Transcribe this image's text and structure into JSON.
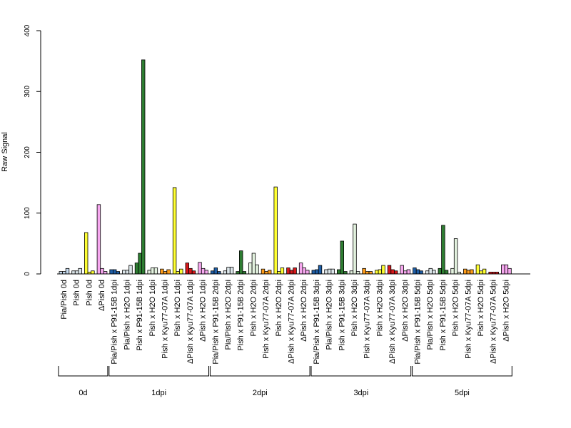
{
  "chart_data": {
    "type": "bar",
    "ylabel": "Raw Signal",
    "ylim": [
      0,
      400
    ],
    "yticks": [
      0,
      100,
      200,
      300,
      400
    ],
    "series_colors": [
      "#c6d7ef",
      "#dce4e7",
      "#edf2f4",
      "#ffffff",
      "#c6d7ef",
      "#dce4e7",
      "#edf2f4",
      "#ffffff",
      "#ffffff",
      "#ffffff",
      "#ffffff",
      "#ffffff",
      "#ffffff",
      "#ffffff",
      "#ffffff"
    ],
    "categories": [
      {
        "label": "Pia/Pish 0d",
        "color": "#c6dbef",
        "values": [
          4,
          4,
          9
        ]
      },
      {
        "label": "Pish 0d",
        "color": "#dce6ea",
        "values": [
          5,
          5,
          9
        ]
      },
      {
        "label": "Pish 0d",
        "color": "#ffff33",
        "values": [
          68,
          3,
          5
        ]
      },
      {
        "label": "ΔPish 0d",
        "color": "#f7a8f0",
        "values": [
          114,
          9,
          4
        ]
      },
      {
        "label": "Pia/Pish x P91-15B 1dpi",
        "color": "#1f5fa8",
        "values": [
          7,
          7,
          4
        ]
      },
      {
        "label": "Pia/Pish x H2O 1dpi",
        "color": "#dce6ea",
        "values": [
          6,
          6,
          14
        ]
      },
      {
        "label": "Pish x P91-15B 1dpi",
        "color": "#2e7d32",
        "values": [
          18,
          34,
          352
        ]
      },
      {
        "label": "Pish x H2O 1dpi",
        "color": "#e3f2df",
        "values": [
          6,
          10,
          10
        ]
      },
      {
        "label": "Pish x Kyu77-07A 1dpi",
        "color": "#ff9d1a",
        "values": [
          8,
          4,
          7
        ]
      },
      {
        "label": "Pish x H2O 1dpi",
        "color": "#ffff33",
        "values": [
          142,
          4,
          8
        ]
      },
      {
        "label": "ΔPish x Kyu77-07A 1dpi",
        "color": "#d7191c",
        "values": [
          18,
          9,
          5
        ]
      },
      {
        "label": "ΔPish x H2O 1dpi",
        "color": "#f7a8f0",
        "values": [
          19,
          9,
          6
        ]
      },
      {
        "label": "Pia/Pish x P91-15B 2dpi",
        "color": "#1f5fa8",
        "values": [
          5,
          10,
          4
        ]
      },
      {
        "label": "Pia/Pish x H2O 2dpi",
        "color": "#dce6ea",
        "values": [
          5,
          11,
          11
        ]
      },
      {
        "label": "Pish x P91-15B 2dpi",
        "color": "#2e7d32",
        "values": [
          4,
          38,
          4
        ]
      },
      {
        "label": "Pish x H2O 2dpi",
        "color": "#e3f2df",
        "values": [
          18,
          34,
          15
        ]
      },
      {
        "label": "Pish x Kyu77-07A 2dpi",
        "color": "#ff9d1a",
        "values": [
          8,
          4,
          6
        ]
      },
      {
        "label": "Pish x H2O 2dpi",
        "color": "#ffff33",
        "values": [
          143,
          4,
          10
        ]
      },
      {
        "label": "ΔPish x Kyu77-07A 2dpi",
        "color": "#d7191c",
        "values": [
          10,
          6,
          10
        ]
      },
      {
        "label": "ΔPish x H2O 2dpi",
        "color": "#f7a8f0",
        "values": [
          18,
          10,
          6
        ]
      },
      {
        "label": "Pia/Pish x P91-15B 3dpi",
        "color": "#1f5fa8",
        "values": [
          6,
          7,
          14
        ]
      },
      {
        "label": "Pia/Pish x H2O 3dpi",
        "color": "#dce6ea",
        "values": [
          7,
          8,
          8
        ]
      },
      {
        "label": "Pish x P91-15B 3dpi",
        "color": "#2e7d32",
        "values": [
          7,
          54,
          4
        ]
      },
      {
        "label": "Pish x H2O 3dpi",
        "color": "#e3f2df",
        "values": [
          5,
          82,
          4
        ]
      },
      {
        "label": "Pish x Kyu77-07A 3dpi",
        "color": "#ff9d1a",
        "values": [
          9,
          4,
          4
        ]
      },
      {
        "label": "Pish x H2O 3dpi",
        "color": "#ffff33",
        "values": [
          6,
          7,
          14
        ]
      },
      {
        "label": "ΔPish x Kyu77-07A 3dpi",
        "color": "#d7191c",
        "values": [
          14,
          7,
          5
        ]
      },
      {
        "label": "ΔPish x H2O 3dpi",
        "color": "#f7a8f0",
        "values": [
          14,
          5,
          7
        ]
      },
      {
        "label": "Pia/Pish x P91-15B 5dpi",
        "color": "#1f5fa8",
        "values": [
          10,
          7,
          5
        ]
      },
      {
        "label": "Pia/Pish x H2O 5dpi",
        "color": "#dce6ea",
        "values": [
          5,
          9,
          6
        ]
      },
      {
        "label": "Pish x P91-15B 5dpi",
        "color": "#2e7d32",
        "values": [
          9,
          80,
          6
        ]
      },
      {
        "label": "Pish x H2O 5dpi",
        "color": "#e3f2df",
        "values": [
          9,
          58,
          3
        ]
      },
      {
        "label": "Pish x Kyu77-07A 5dpi",
        "color": "#ff9d1a",
        "values": [
          8,
          6,
          7
        ]
      },
      {
        "label": "Pish x H2O 5dpi",
        "color": "#ffff33",
        "values": [
          15,
          5,
          8
        ]
      },
      {
        "label": "ΔPish x Kyu77-07A 5dpi",
        "color": "#d7191c",
        "values": [
          3,
          3,
          3
        ]
      },
      {
        "label": "ΔPish x H2O 5dpi",
        "color": "#f7a8f0",
        "values": [
          15,
          15,
          9
        ]
      }
    ],
    "groups": [
      {
        "label": "0d",
        "start": 0,
        "end": 3
      },
      {
        "label": "1dpi",
        "start": 4,
        "end": 11
      },
      {
        "label": "2dpi",
        "start": 12,
        "end": 19
      },
      {
        "label": "3dpi",
        "start": 20,
        "end": 27
      },
      {
        "label": "5dpi",
        "start": 28,
        "end": 35
      }
    ]
  }
}
